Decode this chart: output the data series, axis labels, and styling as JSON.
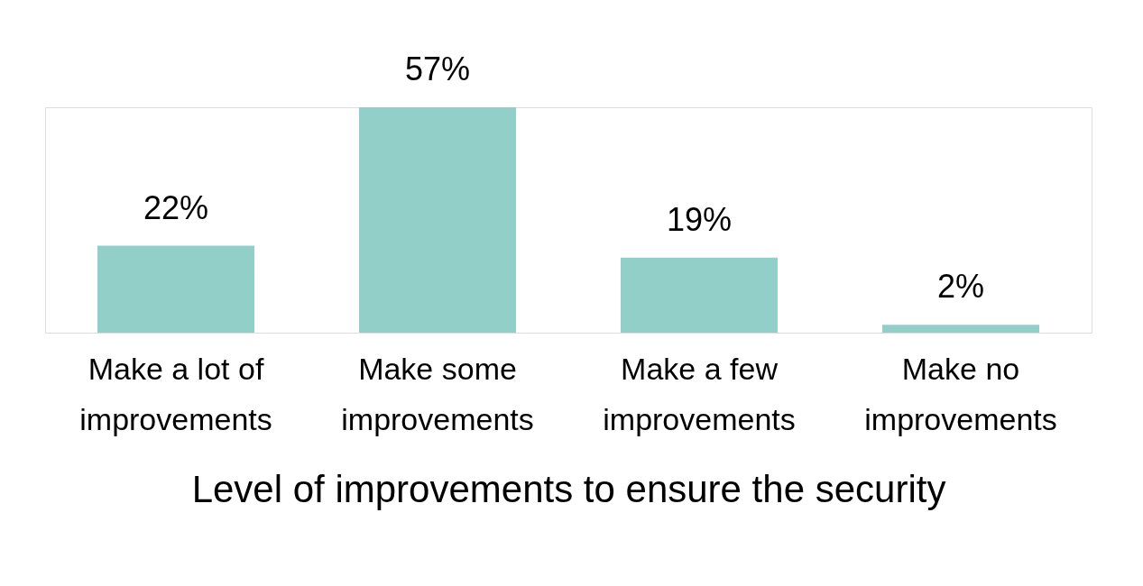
{
  "chart_data": {
    "type": "bar",
    "xlabel": "Level of improvements to ensure the security",
    "categories": [
      "Make a lot of improvements",
      "Make some improvements",
      "Make a few improvements",
      "Make no improvements"
    ],
    "values": [
      22,
      57,
      19,
      2
    ],
    "color": "#93cfc9",
    "value_labels": [
      "22%",
      "57%",
      "19%",
      "2%"
    ],
    "grid": false
  }
}
